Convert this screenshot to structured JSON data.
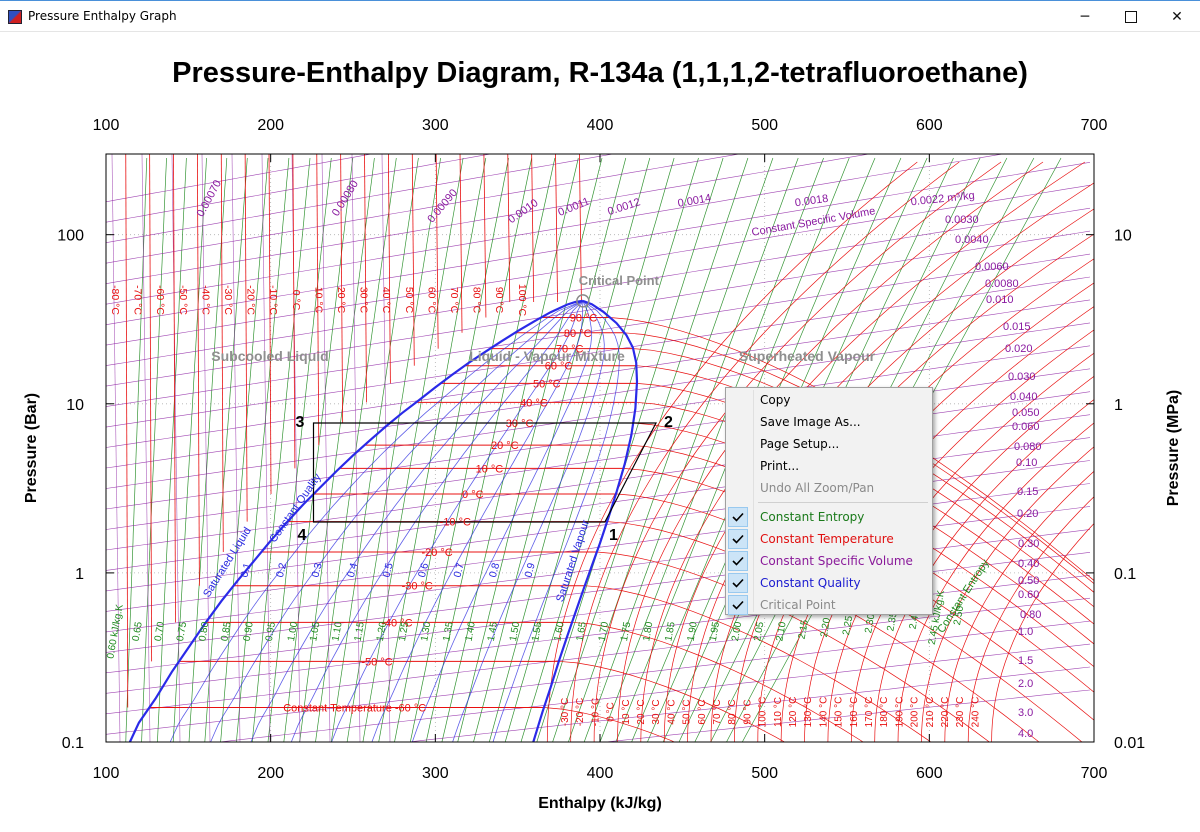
{
  "window": {
    "title": "Pressure Enthalpy Graph",
    "minimize_label": "─",
    "close_label": "✕",
    "icon": "app-chart-icon"
  },
  "chart_data": {
    "type": "line",
    "title": "Pressure-Enthalpy Diagram, R-134a (1,1,1,2-tetrafluoroethane)",
    "xlabel": "Enthalpy (kJ/kg)",
    "ylabel_left": "Pressure (Bar)",
    "ylabel_right": "Pressure (MPa)",
    "xlim": [
      100,
      700
    ],
    "ylim": [
      0.1,
      300
    ],
    "yscale": "log",
    "x_ticks": [
      "100",
      "200",
      "300",
      "400",
      "500",
      "600",
      "700"
    ],
    "y_ticks_left": [
      "0.1",
      "1",
      "10",
      "100"
    ],
    "y_ticks_right": [
      "0.01",
      "0.1",
      "1",
      "10"
    ],
    "grid": true,
    "region_labels": {
      "subcooled": "Subcooled Liquid",
      "mixture": "Liquid - Vapour Mixture",
      "superheated": "Superheated Vapour",
      "critical": "Critical Point"
    },
    "critical_point": {
      "h": 389.6,
      "p": 40.6
    },
    "saturated_liquid": {
      "label": "Saturated Liquid",
      "h": [
        114.5,
        120,
        130,
        140,
        150,
        160,
        170,
        180,
        190,
        200,
        210,
        220,
        230,
        240,
        250,
        260,
        270,
        280,
        290,
        300,
        310,
        320,
        330,
        340,
        350,
        360,
        370,
        380,
        385,
        389.6
      ],
      "p": [
        0.1,
        0.13,
        0.18,
        0.26,
        0.36,
        0.5,
        0.68,
        0.9,
        1.18,
        1.55,
        2.0,
        2.55,
        3.2,
        4.0,
        4.95,
        6.05,
        7.35,
        8.85,
        10.5,
        12.5,
        14.8,
        17.4,
        20.2,
        23.4,
        26.9,
        30.7,
        34.8,
        38.6,
        40.0,
        40.6
      ]
    },
    "saturated_vapour": {
      "label": "Saturated Vapour",
      "h": [
        359.5,
        362,
        365,
        370,
        375,
        380,
        385,
        390,
        395,
        400,
        405,
        410,
        415,
        419,
        421.5,
        422.5,
        422,
        420,
        416,
        410,
        402,
        395,
        389.6
      ],
      "p": [
        0.1,
        0.12,
        0.15,
        0.21,
        0.3,
        0.42,
        0.58,
        0.8,
        1.1,
        1.5,
        2.1,
        3.0,
        4.4,
        6.5,
        9.4,
        13.5,
        17.5,
        21.5,
        25.5,
        30.0,
        35.0,
        38.8,
        40.6
      ]
    },
    "isotherms": [
      {
        "label": "90 °C",
        "p": 32.4
      },
      {
        "label": "80 °C",
        "p": 26.3
      },
      {
        "label": "70 °C",
        "p": 21.2
      },
      {
        "label": "60 °C",
        "p": 16.8
      },
      {
        "label": "50 °C",
        "p": 13.2
      },
      {
        "label": "40 °C",
        "p": 10.2
      },
      {
        "label": "30 °C",
        "p": 7.7
      },
      {
        "label": "20 °C",
        "p": 5.7
      },
      {
        "label": "10 °C",
        "p": 4.15
      },
      {
        "label": "0 °C",
        "p": 2.93
      },
      {
        "label": "-10 °C",
        "p": 2.01
      },
      {
        "label": "-20 °C",
        "p": 1.33
      },
      {
        "label": "-30 °C",
        "p": 0.84
      },
      {
        "label": "-40 °C",
        "p": 0.51
      },
      {
        "label": "-50 °C",
        "p": 0.3
      },
      {
        "label": "Constant Temperature -60 °C",
        "p": 0.16
      }
    ],
    "isotherm_top_labels": [
      "-80 °C",
      "-70 °C",
      "-60 °C",
      "-50 °C",
      "-40 °C",
      "-30 °C",
      "-20 °C",
      "-10 °C",
      "0 °C",
      "10 °C",
      "20 °C",
      "30 °C",
      "40 °C",
      "50 °C",
      "60 °C",
      "70 °C",
      "80 °C",
      "90 °C",
      "100 °C"
    ],
    "isotherm_bottom_labels": [
      "-30 °C",
      "-20 °C",
      "-10 °C",
      "0 °C",
      "10 °C",
      "20 °C",
      "30 °C",
      "40 °C",
      "50 °C",
      "60 °C",
      "70 °C",
      "80 °C",
      "90 °C",
      "100 °C",
      "110 °C",
      "120 °C",
      "130 °C",
      "140 °C",
      "150 °C",
      "160 °C",
      "170 °C",
      "180 °C",
      "190 °C",
      "200 °C",
      "210 °C",
      "220 °C",
      "230 °C",
      "240 °C"
    ],
    "quality_labels": [
      "0.1",
      "0.2",
      "0.3",
      "0.4",
      "0.5",
      "0.6",
      "0.7",
      "0.8",
      "0.9"
    ],
    "quality_axis_label": "Constant Quality",
    "entropy_labels": [
      "0.60 kJ/kg.K",
      "0.65",
      "0.70",
      "0.75",
      "0.80",
      "0.85",
      "0.90",
      "0.95",
      "1.00",
      "1.05",
      "1.10",
      "1.15",
      "1.20",
      "1.25",
      "1.30",
      "1.35",
      "1.40",
      "1.45",
      "1.50",
      "1.55",
      "1.60",
      "1.65",
      "1.70",
      "1.75",
      "1.80",
      "1.85",
      "1.90",
      "1.95",
      "2.00",
      "2.05",
      "2.10",
      "2.15",
      "2.20",
      "2.25",
      "2.30",
      "2.35",
      "2.40",
      "2.45 kJ/kg.K",
      "2.50"
    ],
    "entropy_axis_label": "Constant Entropy",
    "volume_labels_top": [
      "0.00070",
      "0.00080",
      "0.00090",
      "0.0010",
      "0.0011",
      "0.0012",
      "0.0014",
      "0.0018",
      "0.0022 m³/kg"
    ],
    "volume_labels_right": [
      "0.0030",
      "0.0040",
      "0.0060",
      "0.0080",
      "0.010",
      "0.015",
      "0.020",
      "0.030",
      "0.040",
      "0.050",
      "0.060",
      "0.080",
      "0.10",
      "0.15",
      "0.20",
      "0.30",
      "0.40",
      "0.50",
      "0.60",
      "0.80",
      "1.0",
      "1.5",
      "2.0",
      "3.0",
      "4.0"
    ],
    "volume_axis_label": "Constant Specific Volume",
    "cycle": {
      "points": [
        {
          "label": "1",
          "h": 403,
          "p": 2.0
        },
        {
          "label": "2",
          "h": 434,
          "p": 7.7
        },
        {
          "label": "3",
          "h": 226,
          "p": 7.7
        },
        {
          "label": "4",
          "h": 226,
          "p": 2.0
        }
      ]
    }
  },
  "context_menu": {
    "items": [
      {
        "label": "Copy",
        "enabled": true,
        "checked": false
      },
      {
        "label": "Save Image As...",
        "enabled": true,
        "checked": false
      },
      {
        "label": "Page Setup...",
        "enabled": true,
        "checked": false
      },
      {
        "label": "Print...",
        "enabled": true,
        "checked": false
      },
      {
        "label": "Undo All Zoom/Pan",
        "enabled": false,
        "checked": false
      },
      {
        "label": "Constant Entropy",
        "enabled": true,
        "checked": true,
        "color": "#1a7a1a"
      },
      {
        "label": "Constant Temperature",
        "enabled": true,
        "checked": true,
        "color": "#e01010"
      },
      {
        "label": "Constant Specific Volume",
        "enabled": true,
        "checked": true,
        "color": "#8a1a9a"
      },
      {
        "label": "Constant Quality",
        "enabled": true,
        "checked": true,
        "color": "#1a1ad0"
      },
      {
        "label": "Critical Point",
        "enabled": true,
        "checked": true,
        "color": "#8a8a8a"
      }
    ]
  },
  "colors": {
    "entropy": "#1f8a1f",
    "temperature": "#e81010",
    "volume": "#8a1aa0",
    "quality": "#2a2ae0",
    "saturation": "#2a2ae8",
    "region_text": "#8f8f8f"
  }
}
